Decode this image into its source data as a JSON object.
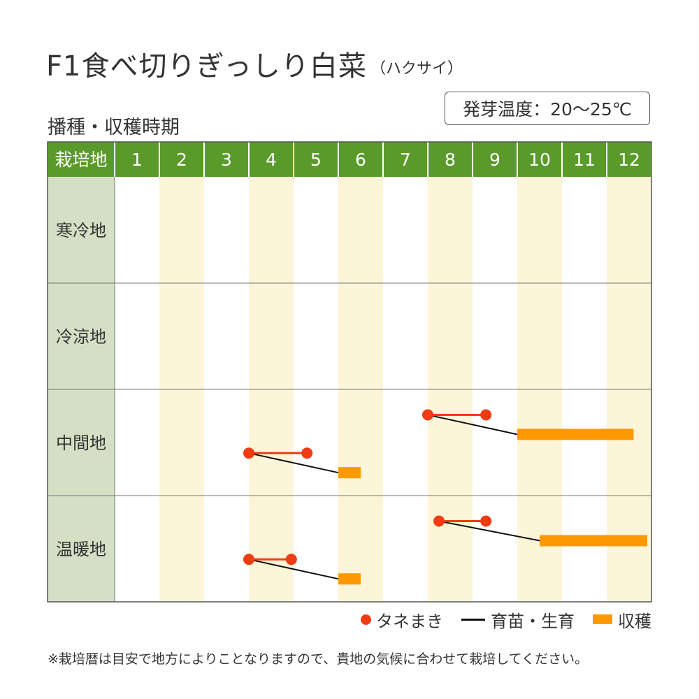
{
  "title": "F1食べ切りぎっしり白菜",
  "title_sub": "（ハクサイ）",
  "temperature_label": "発芽温度：20〜25℃",
  "subtitle": "播種・収穫時期",
  "chart_data": {
    "type": "table",
    "header_label": "栽培地",
    "months": [
      "1",
      "2",
      "3",
      "4",
      "5",
      "6",
      "7",
      "8",
      "9",
      "10",
      "11",
      "12"
    ],
    "regions": [
      {
        "name": "寒冷地",
        "schedules": []
      },
      {
        "name": "冷涼地",
        "schedules": []
      },
      {
        "name": "中間地",
        "schedules": [
          {
            "sowing": [
              8.0,
              9.3
            ],
            "harvest": [
              10.0,
              12.6
            ]
          },
          {
            "sowing": [
              4.0,
              5.3
            ],
            "harvest": [
              6.0,
              6.5
            ]
          }
        ]
      },
      {
        "name": "温暖地",
        "schedules": [
          {
            "sowing": [
              8.25,
              9.3
            ],
            "harvest": [
              10.5,
              13.0
            ]
          },
          {
            "sowing": [
              4.0,
              4.95
            ],
            "harvest": [
              6.0,
              6.5
            ]
          }
        ]
      }
    ],
    "legend": {
      "sowing": "タネまき",
      "growing": "育苗・生育",
      "harvest": "収穫"
    },
    "colors": {
      "header_bg": "#5a9a2a",
      "region_bg": "#d5dfc5",
      "alt_column": "#fdf5d8",
      "sowing": "#f03c14",
      "growing": "#111111",
      "harvest": "#ff9900"
    }
  },
  "note": "※栽培暦は目安で地方によりことなりますので、貴地の気候に合わせて栽培してください。"
}
